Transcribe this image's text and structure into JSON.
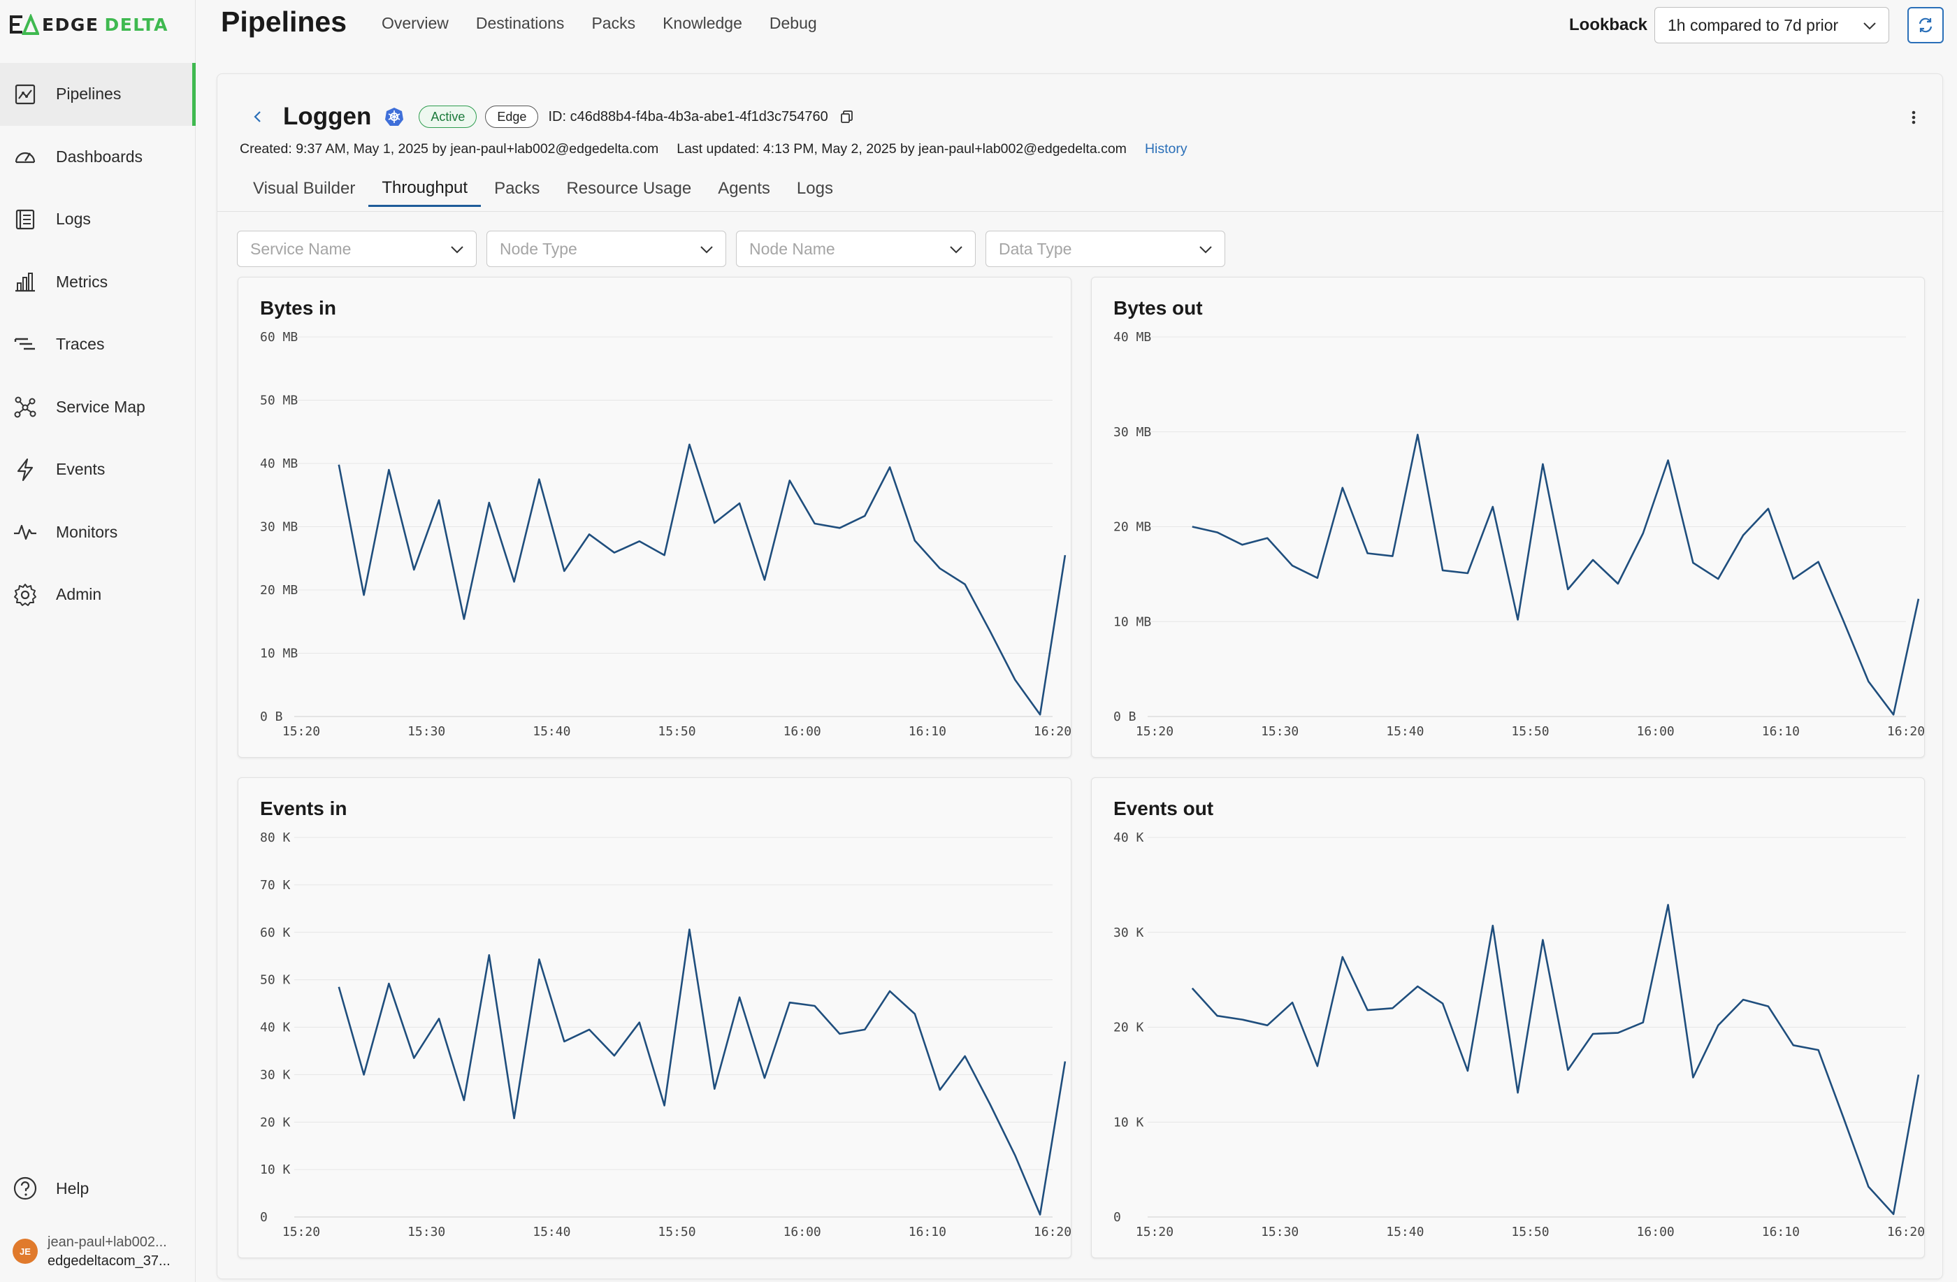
{
  "brand": {
    "word1": "EDGE",
    "word2": "DELTA",
    "green": "#3fb950"
  },
  "sidebar": {
    "items": [
      {
        "label": "Pipelines",
        "icon": "pipelines-icon",
        "active": true
      },
      {
        "label": "Dashboards",
        "icon": "dashboard-icon",
        "active": false
      },
      {
        "label": "Logs",
        "icon": "logs-icon",
        "active": false
      },
      {
        "label": "Metrics",
        "icon": "metrics-icon",
        "active": false
      },
      {
        "label": "Traces",
        "icon": "traces-icon",
        "active": false
      },
      {
        "label": "Service Map",
        "icon": "service-map-icon",
        "active": false
      },
      {
        "label": "Events",
        "icon": "events-icon",
        "active": false
      },
      {
        "label": "Monitors",
        "icon": "monitors-icon",
        "active": false
      },
      {
        "label": "Admin",
        "icon": "gear-icon",
        "active": false
      }
    ],
    "help": "Help",
    "user": {
      "initials": "JE",
      "name": "jean-paul+lab002...",
      "org": "edgedeltacom_37..."
    }
  },
  "header": {
    "title": "Pipelines",
    "nav": [
      "Overview",
      "Destinations",
      "Packs",
      "Knowledge",
      "Debug"
    ],
    "lookback_label": "Lookback",
    "lookback_value": "1h compared to 7d prior"
  },
  "pipeline": {
    "name": "Loggen",
    "status": "Active",
    "type": "Edge",
    "id_text": "ID: c46d88b4-f4ba-4b3a-abe1-4f1d3c754760",
    "created": "Created: 9:37 AM, May 1, 2025 by jean-paul+lab002@edgedelta.com",
    "updated": "Last updated: 4:13 PM, May 2, 2025 by jean-paul+lab002@edgedelta.com",
    "history": "History"
  },
  "tabs": [
    "Visual Builder",
    "Throughput",
    "Packs",
    "Resource Usage",
    "Agents",
    "Logs"
  ],
  "active_tab": "Throughput",
  "filters": [
    "Service Name",
    "Node Type",
    "Node Name",
    "Data Type"
  ],
  "line_color": "#1f4e7d",
  "chart_data": [
    {
      "type": "line",
      "title": "Bytes in",
      "unit": "MB",
      "ylim": [
        0,
        60
      ],
      "yticks": [
        "0 B",
        "10 MB",
        "20 MB",
        "30 MB",
        "40 MB",
        "50 MB",
        "60 MB"
      ],
      "xlim": [
        "15:20",
        "16:20"
      ],
      "xticks": [
        "15:20",
        "15:30",
        "15:40",
        "15:50",
        "16:00",
        "16:10",
        "16:20"
      ],
      "x": [
        "15:23",
        "15:25",
        "15:27",
        "15:29",
        "15:31",
        "15:33",
        "15:35",
        "15:37",
        "15:39",
        "15:41",
        "15:43",
        "15:45",
        "15:47",
        "15:49",
        "15:51",
        "15:53",
        "15:55",
        "15:57",
        "15:59",
        "16:01",
        "16:03",
        "16:05",
        "16:07",
        "16:09",
        "16:11",
        "16:13",
        "16:15",
        "16:17",
        "16:19",
        "16:21"
      ],
      "y": [
        39.8,
        19.2,
        39,
        23.2,
        34.2,
        15.4,
        33.8,
        21.3,
        37.5,
        23,
        28.8,
        25.9,
        27.7,
        25.5,
        43,
        30.6,
        33.7,
        21.6,
        37.3,
        30.5,
        29.8,
        31.7,
        39.4,
        27.8,
        23.4,
        20.9,
        13.5,
        5.8,
        0.3,
        25.5
      ]
    },
    {
      "type": "line",
      "title": "Bytes out",
      "unit": "MB",
      "ylim": [
        0,
        40
      ],
      "yticks": [
        "0 B",
        "10 MB",
        "20 MB",
        "30 MB",
        "40 MB"
      ],
      "xlim": [
        "15:20",
        "16:20"
      ],
      "xticks": [
        "15:20",
        "15:30",
        "15:40",
        "15:50",
        "16:00",
        "16:10",
        "16:20"
      ],
      "x": [
        "15:23",
        "15:25",
        "15:27",
        "15:29",
        "15:31",
        "15:33",
        "15:35",
        "15:37",
        "15:39",
        "15:41",
        "15:43",
        "15:45",
        "15:47",
        "15:49",
        "15:51",
        "15:53",
        "15:55",
        "15:57",
        "15:59",
        "16:01",
        "16:03",
        "16:05",
        "16:07",
        "16:09",
        "16:11",
        "16:13",
        "16:15",
        "16:17",
        "16:19",
        "16:21"
      ],
      "y": [
        20,
        19.4,
        18.1,
        18.8,
        15.9,
        14.6,
        24.1,
        17.2,
        16.9,
        29.7,
        15.4,
        15.1,
        22.1,
        10.2,
        26.6,
        13.4,
        16.5,
        14,
        19.3,
        27,
        16.2,
        14.5,
        19.1,
        21.9,
        14.5,
        16.3,
        10.1,
        3.7,
        0.2,
        12.4
      ]
    },
    {
      "type": "line",
      "title": "Events in",
      "unit": "K",
      "ylim": [
        0,
        80
      ],
      "yticks": [
        "0",
        "10 K",
        "20 K",
        "30 K",
        "40 K",
        "50 K",
        "60 K",
        "70 K",
        "80 K"
      ],
      "xlim": [
        "15:20",
        "16:20"
      ],
      "xticks": [
        "15:20",
        "15:30",
        "15:40",
        "15:50",
        "16:00",
        "16:10",
        "16:20"
      ],
      "x": [
        "15:23",
        "15:25",
        "15:27",
        "15:29",
        "15:31",
        "15:33",
        "15:35",
        "15:37",
        "15:39",
        "15:41",
        "15:43",
        "15:45",
        "15:47",
        "15:49",
        "15:51",
        "15:53",
        "15:55",
        "15:57",
        "15:59",
        "16:01",
        "16:03",
        "16:05",
        "16:07",
        "16:09",
        "16:11",
        "16:13",
        "16:15",
        "16:17",
        "16:19",
        "16:21"
      ],
      "y": [
        48.5,
        30,
        49.2,
        33.5,
        41.8,
        24.6,
        55.2,
        20.8,
        54.3,
        37,
        39.5,
        34,
        41,
        23.5,
        60.6,
        27,
        46.3,
        29.3,
        45.2,
        44.5,
        38.6,
        39.5,
        47.6,
        42.8,
        26.8,
        33.9,
        23.8,
        13,
        0.5,
        32.8
      ]
    },
    {
      "type": "line",
      "title": "Events out",
      "unit": "K",
      "ylim": [
        0,
        40
      ],
      "yticks": [
        "0",
        "10 K",
        "20 K",
        "30 K",
        "40 K"
      ],
      "xlim": [
        "15:20",
        "16:20"
      ],
      "xticks": [
        "15:20",
        "15:30",
        "15:40",
        "15:50",
        "16:00",
        "16:10",
        "16:20"
      ],
      "x": [
        "15:23",
        "15:25",
        "15:27",
        "15:29",
        "15:31",
        "15:33",
        "15:35",
        "15:37",
        "15:39",
        "15:41",
        "15:43",
        "15:45",
        "15:47",
        "15:49",
        "15:51",
        "15:53",
        "15:55",
        "15:57",
        "15:59",
        "16:01",
        "16:03",
        "16:05",
        "16:07",
        "16:09",
        "16:11",
        "16:13",
        "16:15",
        "16:17",
        "16:19",
        "16:21"
      ],
      "y": [
        24.1,
        21.2,
        20.8,
        20.2,
        22.6,
        15.9,
        27.4,
        21.8,
        22,
        24.3,
        22.5,
        15.4,
        30.7,
        13.1,
        29.2,
        15.5,
        19.3,
        19.4,
        20.5,
        32.9,
        14.7,
        20.2,
        22.9,
        22.2,
        18.1,
        17.6,
        10.5,
        3.2,
        0.3,
        15
      ]
    }
  ]
}
